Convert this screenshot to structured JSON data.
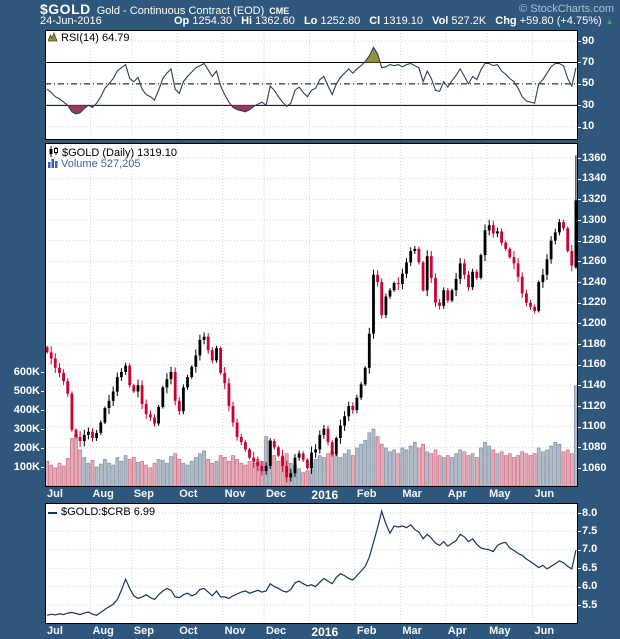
{
  "header": {
    "symbol": "$GOLD",
    "name": "Gold - Continuous Contract (EOD)",
    "exchange": "CME",
    "copyright": "© StockCharts.com",
    "date": "24-Jun-2016",
    "quote": [
      {
        "label": "Op",
        "value": "1254.30"
      },
      {
        "label": "Hi",
        "value": "1362.60"
      },
      {
        "label": "Lo",
        "value": "1252.80"
      },
      {
        "label": "Cl",
        "value": "1319.10"
      },
      {
        "label": "Vol",
        "value": "527.2K"
      },
      {
        "label": "Chg",
        "value": "+59.80 (+4.75%)"
      }
    ],
    "change_arrow": "▲",
    "change_direction": "up"
  },
  "legends": {
    "rsi": "RSI(14) 64.79",
    "price": "$GOLD (Daily) 1319.10",
    "volume": "Volume 527,205",
    "ratio": "$GOLD:$CRB 6.99"
  },
  "colors": {
    "background": "#2f577c",
    "panel_bg": "#ffffff",
    "grid": "#d2d3dd",
    "axis_text": "#ffffff",
    "up_candle": "#000000",
    "down_candle": "#cc0033",
    "up_volume_fill": "#b3bcc9",
    "up_volume_stroke": "#8090a4",
    "down_volume_fill": "#e6aebb",
    "down_volume_stroke": "#c96a80",
    "rsi_line": "#2a4059",
    "overbought_fill": "#95923e",
    "oversold_fill": "#9c3a5e",
    "ratio_line": "#16365a",
    "volume_legend_text": "#3a62a8",
    "change_up": "#3fae5a",
    "copyright_text": "#a9c2d8"
  },
  "axes": {
    "months": [
      {
        "label": "Jul",
        "i": 0
      },
      {
        "label": "Aug",
        "i": 11
      },
      {
        "label": "Sep",
        "i": 21
      },
      {
        "label": "Oct",
        "i": 32
      },
      {
        "label": "Nov",
        "i": 43
      },
      {
        "label": "Dec",
        "i": 53
      },
      {
        "label": "2016",
        "i": 64,
        "year": true
      },
      {
        "label": "Feb",
        "i": 75
      },
      {
        "label": "Mar",
        "i": 86
      },
      {
        "label": "Apr",
        "i": 97
      },
      {
        "label": "May",
        "i": 107
      },
      {
        "label": "Jun",
        "i": 118
      }
    ]
  },
  "chart_data": [
    {
      "id": "rsi",
      "type": "line",
      "title": "RSI(14)",
      "last_value": 64.79,
      "ylim": [
        0,
        100
      ],
      "yticks": [
        90,
        70,
        50,
        30,
        10
      ],
      "overbought": 70,
      "oversold": 30,
      "midline": 50,
      "grid": true,
      "legend_position": "top-left",
      "values": [
        45,
        42,
        38,
        36,
        33,
        30,
        24,
        22,
        23,
        27,
        30,
        28,
        32,
        38,
        46,
        50,
        55,
        62,
        65,
        68,
        55,
        52,
        56,
        45,
        40,
        38,
        35,
        44,
        55,
        60,
        64,
        45,
        41,
        52,
        57,
        61,
        65,
        67,
        69,
        63,
        57,
        62,
        48,
        40,
        33,
        28,
        26,
        25,
        24,
        26,
        29,
        31,
        33,
        30,
        48,
        44,
        38,
        33,
        29,
        32,
        44,
        47,
        42,
        38,
        44,
        46,
        54,
        57,
        48,
        40,
        50,
        56,
        60,
        64,
        60,
        64,
        67,
        71,
        76,
        84,
        78,
        65,
        66,
        68,
        67,
        68,
        66,
        68,
        69,
        67,
        65,
        52,
        62,
        55,
        44,
        43,
        52,
        47,
        53,
        58,
        64,
        57,
        50,
        57,
        54,
        63,
        69,
        69,
        67,
        68,
        62,
        59,
        55,
        52,
        46,
        38,
        34,
        33,
        32,
        50,
        54,
        60,
        66,
        69,
        69,
        67,
        55,
        48,
        64.79
      ]
    },
    {
      "id": "price",
      "type": "candlestick",
      "title": "$GOLD (Daily)",
      "last_value": 1319.1,
      "ylim": [
        1042,
        1374
      ],
      "ytick_min": 1060,
      "ytick_max": 1360,
      "ytick_step": 20,
      "grid": true,
      "closes": [
        1172,
        1166,
        1157,
        1152,
        1144,
        1132,
        1097,
        1090,
        1086,
        1092,
        1095,
        1089,
        1094,
        1104,
        1118,
        1125,
        1134,
        1148,
        1153,
        1159,
        1140,
        1134,
        1140,
        1122,
        1112,
        1109,
        1103,
        1119,
        1138,
        1146,
        1153,
        1125,
        1115,
        1138,
        1148,
        1158,
        1169,
        1184,
        1187,
        1174,
        1164,
        1176,
        1152,
        1142,
        1120,
        1104,
        1090,
        1085,
        1078,
        1070,
        1066,
        1062,
        1057,
        1062,
        1086,
        1080,
        1072,
        1062,
        1051,
        1055,
        1070,
        1074,
        1068,
        1060,
        1075,
        1078,
        1092,
        1098,
        1085,
        1073,
        1089,
        1101,
        1110,
        1120,
        1116,
        1128,
        1141,
        1157,
        1190,
        1247,
        1240,
        1208,
        1226,
        1232,
        1239,
        1238,
        1248,
        1259,
        1270,
        1272,
        1259,
        1232,
        1265,
        1244,
        1220,
        1217,
        1232,
        1222,
        1232,
        1243,
        1258,
        1247,
        1235,
        1250,
        1244,
        1266,
        1290,
        1295,
        1287,
        1289,
        1278,
        1272,
        1264,
        1258,
        1245,
        1229,
        1220,
        1216,
        1212,
        1240,
        1247,
        1262,
        1280,
        1288,
        1298,
        1292,
        1270,
        1256,
        1319
      ],
      "last_candle": {
        "open": 1254.3,
        "high": 1362.6,
        "low": 1252.8,
        "close": 1319.1
      }
    },
    {
      "id": "volume",
      "type": "bar",
      "title": "Volume",
      "last_value": "527,205",
      "unit": "K",
      "yticks": [
        600,
        500,
        400,
        300,
        200,
        100
      ],
      "values": [
        130,
        110,
        95,
        120,
        105,
        145,
        250,
        270,
        190,
        150,
        120,
        135,
        100,
        115,
        140,
        120,
        110,
        150,
        130,
        160,
        140,
        150,
        125,
        130,
        110,
        95,
        120,
        140,
        135,
        120,
        155,
        170,
        140,
        120,
        110,
        130,
        150,
        170,
        185,
        140,
        120,
        130,
        160,
        150,
        130,
        160,
        140,
        120,
        110,
        130,
        120,
        140,
        130,
        260,
        240,
        160,
        130,
        150,
        170,
        120,
        110,
        90,
        70,
        80,
        120,
        140,
        160,
        150,
        170,
        180,
        160,
        150,
        170,
        190,
        160,
        200,
        220,
        240,
        280,
        300,
        260,
        220,
        200,
        180,
        190,
        170,
        200,
        190,
        210,
        230,
        200,
        220,
        180,
        170,
        190,
        160,
        150,
        160,
        150,
        170,
        190,
        180,
        160,
        170,
        150,
        200,
        230,
        210,
        190,
        170,
        180,
        160,
        170,
        150,
        160,
        180,
        170,
        160,
        170,
        200,
        180,
        190,
        210,
        230,
        220,
        180,
        190,
        170,
        527
      ]
    },
    {
      "id": "ratio",
      "type": "line",
      "title": "$GOLD:$CRB",
      "last_value": 6.99,
      "ylim": [
        5.0,
        8.27
      ],
      "yticks": [
        8.0,
        7.5,
        7.0,
        6.5,
        6.0,
        5.5
      ],
      "grid": true,
      "values": [
        5.22,
        5.25,
        5.23,
        5.26,
        5.24,
        5.28,
        5.3,
        5.27,
        5.24,
        5.28,
        5.31,
        5.25,
        5.22,
        5.3,
        5.38,
        5.45,
        5.52,
        5.65,
        5.9,
        6.2,
        5.95,
        5.75,
        5.68,
        5.72,
        5.78,
        5.7,
        5.65,
        5.78,
        5.88,
        5.95,
        5.9,
        5.72,
        5.7,
        5.78,
        5.82,
        5.75,
        5.8,
        5.92,
        5.95,
        5.85,
        5.75,
        5.88,
        5.72,
        5.72,
        5.68,
        5.75,
        5.8,
        5.85,
        5.88,
        5.82,
        5.86,
        5.9,
        5.85,
        5.88,
        6.08,
        6.0,
        5.95,
        5.88,
        5.85,
        5.92,
        6.1,
        6.15,
        6.08,
        6.02,
        6.05,
        6.0,
        6.12,
        6.22,
        6.15,
        6.08,
        6.25,
        6.35,
        6.3,
        6.22,
        6.18,
        6.3,
        6.42,
        6.55,
        6.8,
        7.2,
        7.6,
        8.05,
        7.7,
        7.45,
        7.65,
        7.62,
        7.65,
        7.6,
        7.68,
        7.55,
        7.48,
        7.3,
        7.42,
        7.32,
        7.18,
        7.12,
        7.22,
        7.1,
        7.18,
        7.25,
        7.42,
        7.35,
        7.22,
        7.3,
        7.15,
        7.05,
        7.02,
        7.0,
        6.95,
        7.12,
        7.18,
        7.2,
        7.05,
        6.98,
        6.9,
        6.85,
        6.75,
        6.68,
        6.6,
        6.52,
        6.58,
        6.48,
        6.55,
        6.62,
        6.7,
        6.65,
        6.55,
        6.48,
        6.99
      ]
    }
  ]
}
